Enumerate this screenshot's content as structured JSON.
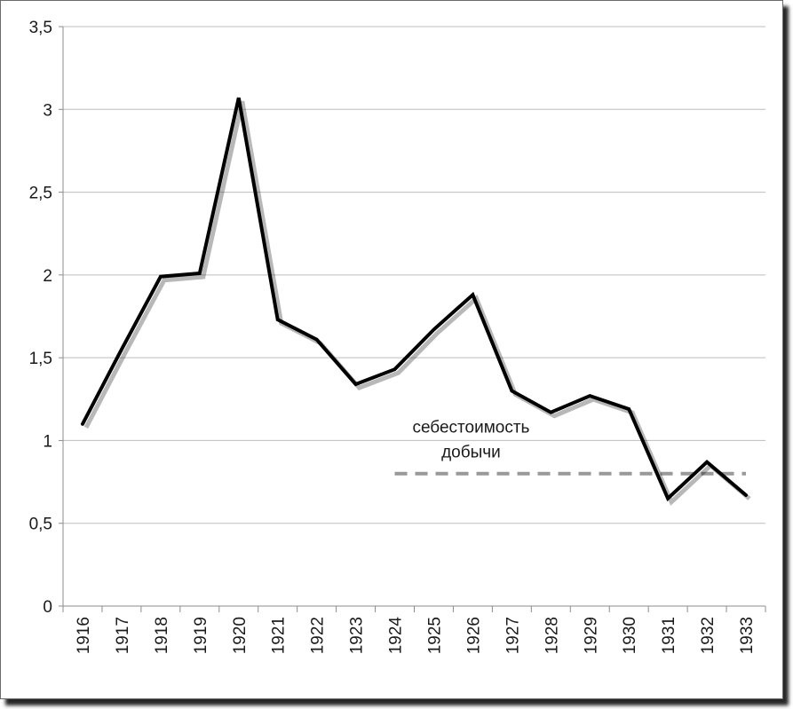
{
  "chart_data": {
    "type": "line",
    "title": "",
    "xlabel": "",
    "ylabel": "",
    "categories": [
      "1916",
      "1917",
      "1918",
      "1919",
      "1920",
      "1921",
      "1922",
      "1923",
      "1924",
      "1925",
      "1926",
      "1927",
      "1928",
      "1929",
      "1930",
      "1931",
      "1932",
      "1933"
    ],
    "ylim": [
      0,
      3.5
    ],
    "yticks": [
      0,
      0.5,
      1,
      1.5,
      2,
      2.5,
      3,
      3.5
    ],
    "ytick_labels": [
      "0",
      "0,5",
      "1",
      "1,5",
      "2",
      "2,5",
      "3",
      "3,5"
    ],
    "grid": true,
    "legend": "none",
    "series": [
      {
        "values": [
          1.1,
          1.55,
          1.99,
          2.01,
          3.07,
          1.73,
          1.61,
          1.34,
          1.43,
          1.67,
          1.88,
          1.3,
          1.17,
          1.27,
          1.19,
          0.65,
          0.87,
          0.67
        ],
        "color": "#000000"
      }
    ],
    "reference_line": {
      "value": 0.8,
      "from_category": "1924",
      "to_category": "1933",
      "style": "dashed",
      "color": "#999999",
      "label_lines": [
        "себестоимость",
        "добычи"
      ]
    }
  }
}
